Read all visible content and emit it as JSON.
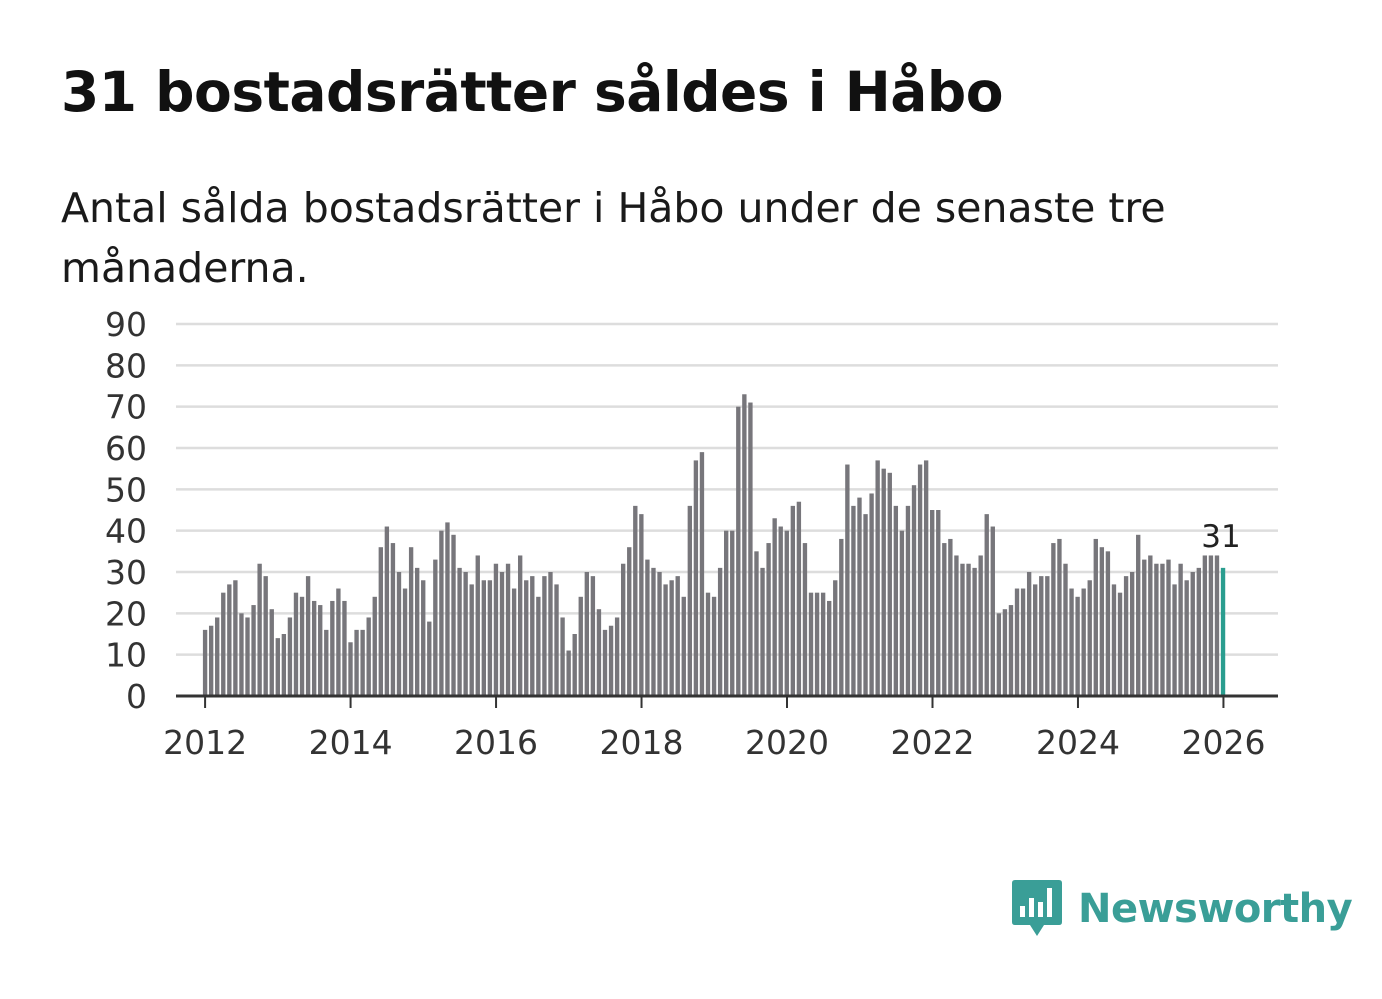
{
  "header": {
    "title": "31 bostadsrätter såldes i Håbo",
    "subtitle": "Antal sålda bostadsrätter i Håbo under de senaste tre månaderna."
  },
  "colors": {
    "bar": "#77767b",
    "highlight": "#2a9d8f",
    "grid": "#dddddd",
    "axis": "#333333",
    "brand": "#3a9e97"
  },
  "chart_data": {
    "type": "bar",
    "title": "31 bostadsrätter såldes i Håbo",
    "subtitle": "Antal sålda bostadsrätter i Håbo under de senaste tre månaderna.",
    "xlabel": "",
    "ylabel": "",
    "ylim": [
      0,
      90
    ],
    "yticks": [
      0,
      10,
      20,
      30,
      40,
      50,
      60,
      70,
      80,
      90
    ],
    "xlim": [
      2011.6,
      2026.75
    ],
    "xticks": [
      "2012",
      "2014",
      "2016",
      "2018",
      "2020",
      "2022",
      "2024",
      "2026"
    ],
    "grid": true,
    "period": "monthly, Jan 2012 – Dec 2025",
    "start": 2012.0,
    "step": 0.0833,
    "values": [
      16,
      17,
      19,
      25,
      27,
      28,
      20,
      19,
      22,
      32,
      29,
      21,
      14,
      15,
      19,
      25,
      24,
      29,
      23,
      22,
      16,
      23,
      26,
      23,
      13,
      16,
      16,
      19,
      24,
      36,
      41,
      37,
      30,
      26,
      36,
      31,
      28,
      18,
      33,
      40,
      42,
      39,
      31,
      30,
      27,
      34,
      28,
      28,
      32,
      30,
      32,
      26,
      34,
      28,
      29,
      24,
      29,
      30,
      27,
      19,
      11,
      15,
      24,
      30,
      29,
      21,
      16,
      17,
      19,
      32,
      36,
      46,
      44,
      33,
      31,
      30,
      27,
      28,
      29,
      24,
      46,
      57,
      59,
      25,
      24,
      31,
      40,
      40,
      70,
      73,
      71,
      35,
      31,
      37,
      43,
      41,
      40,
      46,
      47,
      37,
      25,
      25,
      25,
      23,
      28,
      38,
      56,
      46,
      48,
      44,
      49,
      57,
      55,
      54,
      46,
      40,
      46,
      51,
      56,
      57,
      45,
      45,
      37,
      38,
      34,
      32,
      32,
      31,
      34,
      44,
      41,
      20,
      21,
      22,
      26,
      26,
      30,
      27,
      29,
      29,
      37,
      38,
      32,
      26,
      24,
      26,
      28,
      38,
      36,
      35,
      27,
      25,
      29,
      30,
      39,
      33,
      34,
      32,
      32,
      33,
      27,
      32,
      28,
      30,
      31,
      34,
      34,
      34
    ],
    "highlight": {
      "label": "31",
      "value": 31
    }
  },
  "brand": {
    "logo_text": "Newsworthy",
    "icon": "newsworthy-logo-icon"
  }
}
